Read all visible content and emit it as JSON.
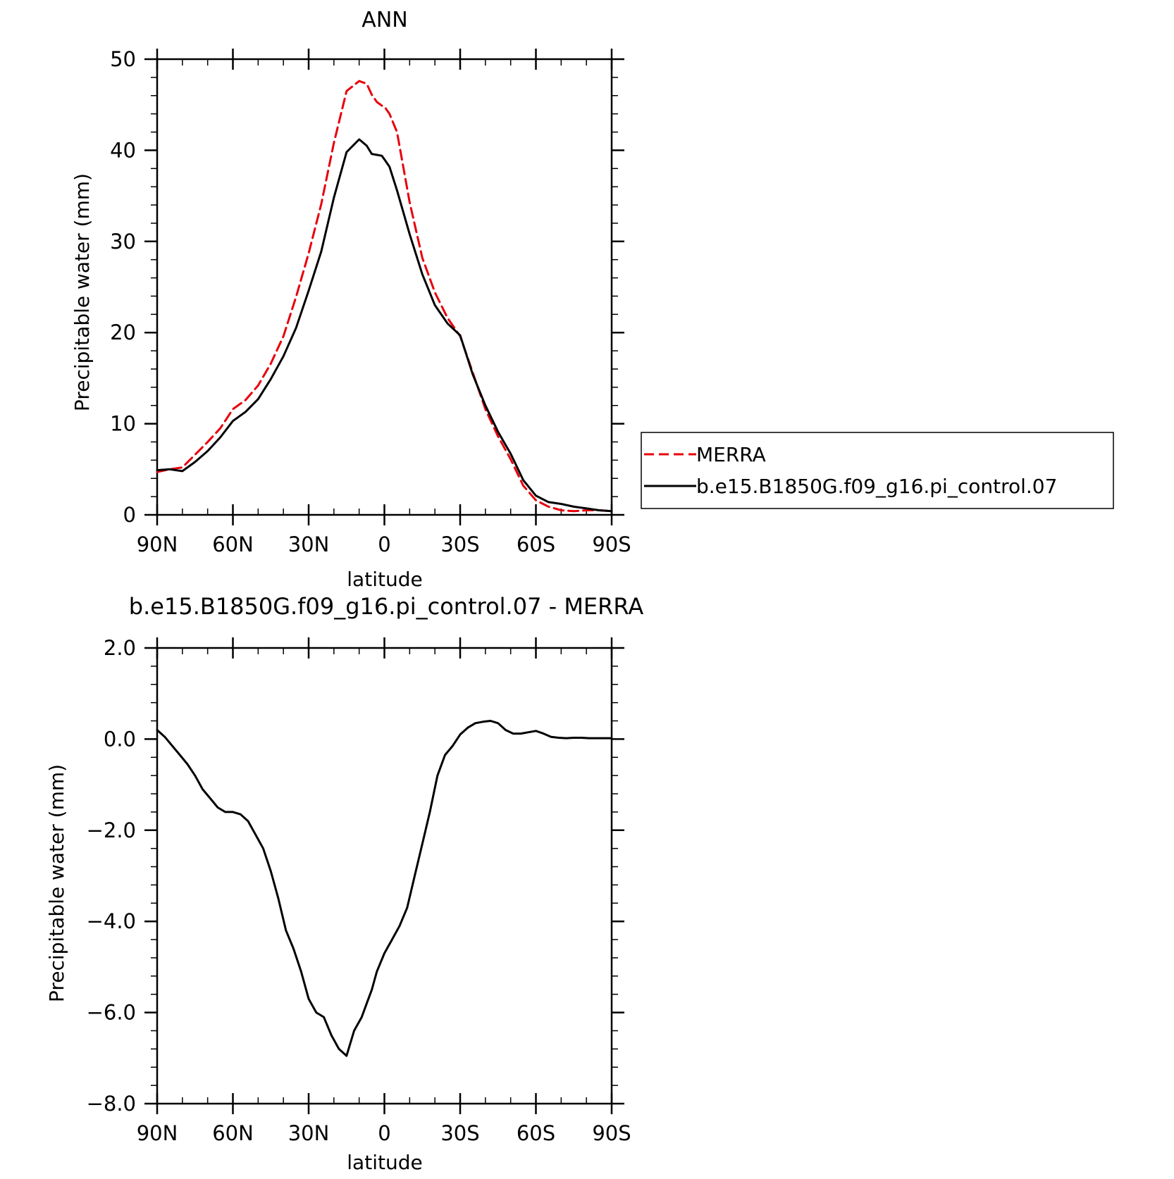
{
  "chart_data": [
    {
      "type": "line",
      "title": "ANN",
      "xlabel": "latitude",
      "ylabel": "Precipitable water (mm)",
      "xlim": [
        90,
        -90
      ],
      "ylim": [
        0,
        50
      ],
      "xticks": [
        {
          "value": 90,
          "label": "90N"
        },
        {
          "value": 60,
          "label": "60N"
        },
        {
          "value": 30,
          "label": "30N"
        },
        {
          "value": 0,
          "label": "0"
        },
        {
          "value": -30,
          "label": "30S"
        },
        {
          "value": -60,
          "label": "60S"
        },
        {
          "value": -90,
          "label": "90S"
        }
      ],
      "yticks": [
        {
          "value": 0,
          "label": "0"
        },
        {
          "value": 10,
          "label": "10"
        },
        {
          "value": 20,
          "label": "20"
        },
        {
          "value": 30,
          "label": "30"
        },
        {
          "value": 40,
          "label": "40"
        },
        {
          "value": 50,
          "label": "50"
        }
      ],
      "grid": false,
      "legend_position": "right, outside plot",
      "series": [
        {
          "name": "MERRA",
          "color": "#e8000b",
          "dash": true,
          "x": [
            90,
            85,
            80,
            75,
            70,
            65,
            60,
            55,
            50,
            45,
            40,
            35,
            30,
            25,
            20,
            15,
            10,
            7,
            5,
            3,
            1,
            0,
            -2,
            -5,
            -10,
            -15,
            -20,
            -25,
            -30,
            -35,
            -40,
            -45,
            -50,
            -55,
            -60,
            -65,
            -70,
            -75,
            -80,
            -85,
            -90
          ],
          "values": [
            4.7,
            5.0,
            5.2,
            6.6,
            8.0,
            9.5,
            11.6,
            12.6,
            14.2,
            16.6,
            19.6,
            23.9,
            28.7,
            34.1,
            40.8,
            46.5,
            47.6,
            47.3,
            46.1,
            45.3,
            44.9,
            44.8,
            44.0,
            42.0,
            34.3,
            28.2,
            24.4,
            21.6,
            19.6,
            15.6,
            11.6,
            8.6,
            6.1,
            3.2,
            1.6,
            0.9,
            0.5,
            0.4,
            0.5,
            0.5,
            0.4
          ],
          "x_overlay_note": ""
        },
        {
          "name": "b.e15.B1850G.f09_g16.pi_control.07",
          "color": "#000000",
          "dash": false,
          "x": [
            90,
            85,
            80,
            75,
            70,
            65,
            60,
            55,
            50,
            45,
            40,
            35,
            30,
            25,
            20,
            15,
            10,
            7,
            5,
            3,
            1,
            0,
            -2,
            -5,
            -10,
            -15,
            -20,
            -25,
            -30,
            -35,
            -40,
            -45,
            -50,
            -55,
            -60,
            -65,
            -70,
            -75,
            -80,
            -85,
            -90
          ],
          "values": [
            4.9,
            5.0,
            4.8,
            5.8,
            7.0,
            8.5,
            10.3,
            11.3,
            12.7,
            14.9,
            17.4,
            20.5,
            24.6,
            28.9,
            34.8,
            39.8,
            41.2,
            40.5,
            39.6,
            39.5,
            39.4,
            39.0,
            38.2,
            35.6,
            30.8,
            26.4,
            23.0,
            21.0,
            19.7,
            15.4,
            12.0,
            9.1,
            6.7,
            3.8,
            2.1,
            1.4,
            1.2,
            0.9,
            0.7,
            0.5,
            0.4
          ]
        }
      ]
    },
    {
      "type": "line",
      "title": "b.e15.B1850G.f09_g16.pi_control.07 - MERRA",
      "xlabel": "latitude",
      "ylabel": "Precipitable water (mm)",
      "xlim": [
        90,
        -90
      ],
      "ylim": [
        -8,
        2
      ],
      "xticks": [
        {
          "value": 90,
          "label": "90N"
        },
        {
          "value": 60,
          "label": "60N"
        },
        {
          "value": 30,
          "label": "30N"
        },
        {
          "value": 0,
          "label": "0"
        },
        {
          "value": -30,
          "label": "30S"
        },
        {
          "value": -60,
          "label": "60S"
        },
        {
          "value": -90,
          "label": "90S"
        }
      ],
      "yticks": [
        {
          "value": -8,
          "label": "−8.0"
        },
        {
          "value": -6,
          "label": "−6.0"
        },
        {
          "value": -4,
          "label": "−4.0"
        },
        {
          "value": -2,
          "label": "−2.0"
        },
        {
          "value": 0,
          "label": "0.0"
        },
        {
          "value": 2,
          "label": "2.0"
        }
      ],
      "grid": false,
      "series": [
        {
          "color": "#000000",
          "dash": false,
          "x": [
            90,
            87,
            84,
            81,
            78,
            75,
            72,
            69,
            66,
            63,
            60,
            57,
            54,
            51,
            48,
            45,
            42,
            39,
            36,
            33,
            30,
            27,
            24,
            21,
            18,
            15,
            12,
            9,
            7,
            5,
            3,
            0,
            -3,
            -6,
            -9,
            -12,
            -15,
            -18,
            -21,
            -24,
            -27,
            -30,
            -33,
            -36,
            -39,
            -42,
            -45,
            -48,
            -51,
            -54,
            -57,
            -60,
            -63,
            -66,
            -69,
            -72,
            -75,
            -78,
            -81,
            -84,
            -87,
            -90
          ],
          "values": [
            0.2,
            0.05,
            -0.15,
            -0.35,
            -0.55,
            -0.8,
            -1.1,
            -1.3,
            -1.5,
            -1.6,
            -1.6,
            -1.65,
            -1.8,
            -2.1,
            -2.4,
            -2.9,
            -3.5,
            -4.2,
            -4.6,
            -5.1,
            -5.7,
            -6.0,
            -6.1,
            -6.5,
            -6.8,
            -6.95,
            -6.4,
            -6.1,
            -5.8,
            -5.5,
            -5.1,
            -4.7,
            -4.4,
            -4.1,
            -3.7,
            -3.0,
            -2.3,
            -1.6,
            -0.8,
            -0.35,
            -0.15,
            0.1,
            0.25,
            0.35,
            0.38,
            0.4,
            0.35,
            0.2,
            0.12,
            0.12,
            0.15,
            0.18,
            0.12,
            0.05,
            0.03,
            0.02,
            0.03,
            0.03,
            0.02,
            0.02,
            0.02,
            0.02
          ]
        }
      ]
    }
  ],
  "legend": {
    "items": [
      {
        "label": "MERRA",
        "color": "#e8000b",
        "dash": true
      },
      {
        "label": "b.e15.B1850G.f09_g16.pi_control.07",
        "color": "#000000",
        "dash": false
      }
    ]
  }
}
